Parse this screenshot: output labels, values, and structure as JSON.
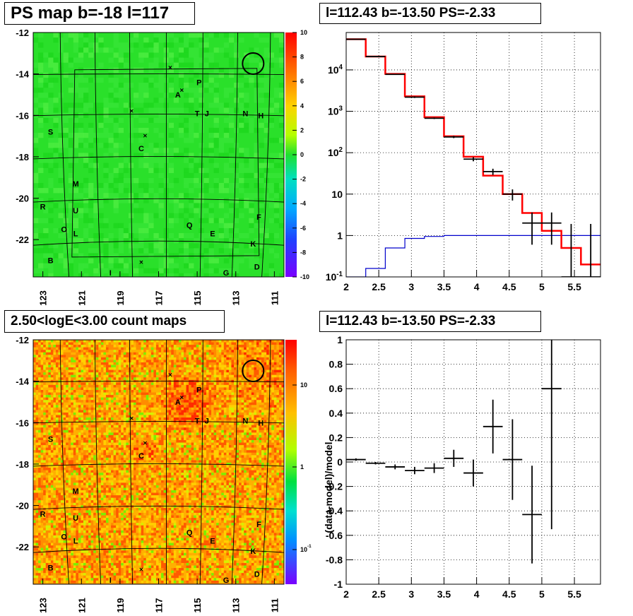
{
  "panels": {
    "tl_title": "PS map b=-18 l=117",
    "tr_title": "l=112.43 b=-13.50 PS=-2.33",
    "bl_title": "2.50<logE<3.00 count maps",
    "br_title": "l=112.43 b=-13.50 PS=-2.33"
  },
  "colors": {
    "data": "#000000",
    "model": "#ff0000",
    "background": "#0000cc",
    "grid": "#000000"
  },
  "chart_data": [
    {
      "type": "heatmap",
      "title": "PS map b=-18 l=117",
      "xlim": [
        123.5,
        110.5
      ],
      "ylim": [
        -23.8,
        -12
      ],
      "xticks": [
        "123",
        "121",
        "119",
        "117",
        "115",
        "113",
        "111"
      ],
      "yticks": [
        "-12",
        "-14",
        "-16",
        "-18",
        "-20",
        "-22"
      ],
      "colorbar": {
        "range": [
          -10,
          10
        ],
        "ticks": [
          "10",
          "8",
          "6",
          "4",
          "2",
          "0",
          "-2",
          "-4",
          "-6",
          "-8",
          "-10"
        ]
      },
      "sources": [
        {
          "label": "P",
          "l": 114.9,
          "b": -14.4
        },
        {
          "label": "A",
          "l": 116.0,
          "b": -15.0
        },
        {
          "label": "T",
          "l": 115.0,
          "b": -15.9
        },
        {
          "label": "J",
          "l": 114.5,
          "b": -15.9
        },
        {
          "label": "N",
          "l": 112.5,
          "b": -15.9
        },
        {
          "label": "H",
          "l": 111.7,
          "b": -16.0
        },
        {
          "label": "S",
          "l": 122.6,
          "b": -16.8
        },
        {
          "label": "C",
          "l": 117.9,
          "b": -17.6
        },
        {
          "label": "M",
          "l": 121.3,
          "b": -19.3
        },
        {
          "label": "R",
          "l": 123.0,
          "b": -20.4
        },
        {
          "label": "U",
          "l": 121.3,
          "b": -20.6
        },
        {
          "label": "F",
          "l": 111.8,
          "b": -20.9
        },
        {
          "label": "Q",
          "l": 115.4,
          "b": -21.3
        },
        {
          "label": "O",
          "l": 121.9,
          "b": -21.5
        },
        {
          "label": "L",
          "l": 121.3,
          "b": -21.7
        },
        {
          "label": "E",
          "l": 114.2,
          "b": -21.7
        },
        {
          "label": "K",
          "l": 112.1,
          "b": -22.2
        },
        {
          "label": "B",
          "l": 122.6,
          "b": -23.0
        },
        {
          "label": "D",
          "l": 111.9,
          "b": -23.3
        },
        {
          "label": "I",
          "l": 119.5,
          "b": -23.6
        },
        {
          "label": "G",
          "l": 113.5,
          "b": -23.6
        }
      ],
      "crosses": [
        {
          "l": 116.4,
          "b": -13.7
        },
        {
          "l": 115.8,
          "b": -14.8
        },
        {
          "l": 118.4,
          "b": -15.8
        },
        {
          "l": 117.7,
          "b": -17.0
        },
        {
          "l": 117.9,
          "b": -23.1
        }
      ],
      "circle": {
        "l": 112.1,
        "b": -13.5
      }
    },
    {
      "type": "line",
      "title": "l=112.43 b=-13.50 PS=-2.33",
      "xlim": [
        2,
        5.9
      ],
      "ylim": [
        0.1,
        80000
      ],
      "log_y": true,
      "grid": true,
      "xticks": [
        "2",
        "2.5",
        "3",
        "3.5",
        "4",
        "4.5",
        "5",
        "5.5"
      ],
      "yticks": [
        "10^4",
        "10^3",
        "10^2",
        "10",
        "1",
        "10^-1"
      ],
      "model_edges": [
        2,
        2.3,
        2.6,
        2.9,
        3.2,
        3.5,
        3.8,
        4.1,
        4.4,
        4.7,
        5.0,
        5.3,
        5.6,
        5.9
      ],
      "model_values": [
        55000,
        21000,
        8000,
        2300,
        720,
        250,
        80,
        28,
        10,
        3.5,
        1.3,
        0.5,
        0.2
      ],
      "background_values": [
        0.1,
        0.16,
        0.5,
        0.85,
        0.95,
        1.0,
        1.0,
        1.0,
        1.0,
        1.0,
        1.0,
        1.0,
        1.0
      ],
      "data_points": [
        {
          "x": 2.15,
          "y": 55000,
          "ylo": 54000,
          "yhi": 56000
        },
        {
          "x": 2.45,
          "y": 21000,
          "ylo": 20500,
          "yhi": 21500
        },
        {
          "x": 2.75,
          "y": 7800,
          "ylo": 7600,
          "yhi": 8000
        },
        {
          "x": 3.05,
          "y": 2200,
          "ylo": 2100,
          "yhi": 2300
        },
        {
          "x": 3.35,
          "y": 680,
          "ylo": 650,
          "yhi": 710
        },
        {
          "x": 3.65,
          "y": 240,
          "ylo": 225,
          "yhi": 255
        },
        {
          "x": 3.95,
          "y": 70,
          "ylo": 62,
          "yhi": 78
        },
        {
          "x": 4.25,
          "y": 35,
          "ylo": 29,
          "yhi": 41
        },
        {
          "x": 4.55,
          "y": 10,
          "ylo": 7,
          "yhi": 13
        },
        {
          "x": 4.85,
          "y": 2,
          "ylo": 0.6,
          "yhi": 3.6
        },
        {
          "x": 5.15,
          "y": 2,
          "ylo": 0.6,
          "yhi": 3.6
        },
        {
          "x": 5.45,
          "y": 0.1,
          "ylo": 0.1,
          "yhi": 1.9
        },
        {
          "x": 5.75,
          "y": 0.1,
          "ylo": 0.1,
          "yhi": 1.9
        }
      ]
    },
    {
      "type": "heatmap",
      "title": "2.50<logE<3.00 count maps",
      "xlim": [
        123.5,
        110.5
      ],
      "ylim": [
        -23.8,
        -12
      ],
      "xticks": [
        "123",
        "121",
        "119",
        "117",
        "115",
        "113",
        "111"
      ],
      "yticks": [
        "-12",
        "-14",
        "-16",
        "-18",
        "-20",
        "-22"
      ],
      "colorbar": {
        "log": true,
        "ticks": [
          "10",
          "1",
          "10^-1"
        ]
      }
    },
    {
      "type": "scatter",
      "title": "l=112.43 b=-13.50 PS=-2.33",
      "ylabel": "(data-model)/model",
      "xlim": [
        2,
        5.9
      ],
      "ylim": [
        -1,
        1
      ],
      "grid": true,
      "xticks": [
        "2",
        "2.5",
        "3",
        "3.5",
        "4",
        "4.5",
        "5",
        "5.5"
      ],
      "yticks": [
        "1",
        "0.8",
        "0.6",
        "0.4",
        "0.2",
        "0",
        "-0.2",
        "-0.4",
        "-0.6",
        "-0.8",
        "-1"
      ],
      "points": [
        {
          "x": 2.15,
          "y": 0.02,
          "err": 0.01
        },
        {
          "x": 2.45,
          "y": -0.01,
          "err": 0.01
        },
        {
          "x": 2.75,
          "y": -0.04,
          "err": 0.02
        },
        {
          "x": 3.05,
          "y": -0.07,
          "err": 0.03
        },
        {
          "x": 3.35,
          "y": -0.05,
          "err": 0.04
        },
        {
          "x": 3.65,
          "y": 0.03,
          "err": 0.07
        },
        {
          "x": 3.95,
          "y": -0.09,
          "err": 0.11
        },
        {
          "x": 4.25,
          "y": 0.29,
          "err": 0.22
        },
        {
          "x": 4.55,
          "y": 0.02,
          "err": 0.33
        },
        {
          "x": 4.85,
          "y": -0.43,
          "err": 0.4
        },
        {
          "x": 5.15,
          "y": 0.6,
          "err": 1.15
        }
      ]
    }
  ]
}
